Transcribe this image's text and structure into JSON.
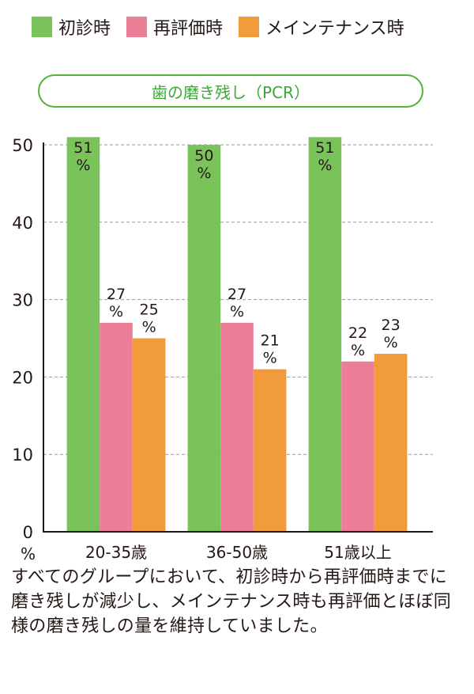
{
  "legend": [
    {
      "label": "初診時",
      "color": "#7ac25a"
    },
    {
      "label": "再評価時",
      "color": "#ec7e98"
    },
    {
      "label": "メインテナンス時",
      "color": "#f29b3c"
    }
  ],
  "chart_data": {
    "type": "bar",
    "title": "歯の磨き残し（PCR）",
    "categories": [
      "20-35歳",
      "36-50歳",
      "51歳以上"
    ],
    "series": [
      {
        "name": "初診時",
        "values": [
          51,
          50,
          51
        ],
        "color": "#7ac25a"
      },
      {
        "name": "再評価時",
        "values": [
          27,
          27,
          22
        ],
        "color": "#ec7e98"
      },
      {
        "name": "メインテナンス時",
        "values": [
          25,
          21,
          23
        ],
        "color": "#f29b3c"
      }
    ],
    "ylim": [
      0,
      50
    ],
    "yticks": [
      0,
      10,
      20,
      30,
      40,
      50
    ],
    "ylabel": "%",
    "value_suffix": "%",
    "grid": true
  },
  "caption": "すべてのグループにおいて、初診時から再評価時までに磨き残しが減少し、メインテナンス時も再評価とほぼ同様の磨き残しの量を維持していました。"
}
